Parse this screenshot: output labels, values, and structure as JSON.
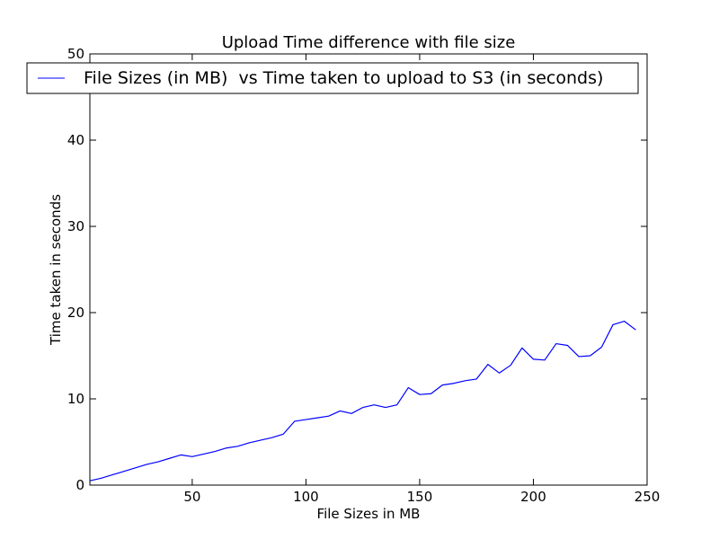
{
  "chart_data": {
    "type": "line",
    "title": "Upload Time difference with file size",
    "xlabel": "File Sizes in MB",
    "ylabel": "Time taken in seconds",
    "xlim": [
      5,
      250
    ],
    "ylim": [
      0,
      50
    ],
    "xticks": [
      50,
      100,
      150,
      200,
      250
    ],
    "yticks": [
      0,
      10,
      20,
      30,
      40,
      50
    ],
    "grid": false,
    "legend_position": "top",
    "series": [
      {
        "name": "File Sizes (in MB)  vs Time taken to upload to S3 (in seconds)",
        "color": "#0000ff",
        "x": [
          5,
          10,
          15,
          20,
          25,
          30,
          35,
          40,
          45,
          50,
          55,
          60,
          65,
          70,
          75,
          80,
          85,
          90,
          95,
          100,
          105,
          110,
          115,
          120,
          125,
          130,
          135,
          140,
          145,
          150,
          155,
          160,
          165,
          170,
          175,
          180,
          185,
          190,
          195,
          200,
          205,
          210,
          215,
          220,
          225,
          230,
          235,
          240,
          245
        ],
        "y": [
          0.5,
          0.8,
          1.2,
          1.6,
          2.0,
          2.4,
          2.7,
          3.1,
          3.5,
          3.3,
          3.6,
          3.9,
          4.3,
          4.5,
          4.9,
          5.2,
          5.5,
          5.9,
          7.4,
          7.6,
          7.8,
          8.0,
          8.6,
          8.3,
          9.0,
          9.3,
          9.0,
          9.3,
          11.3,
          10.5,
          10.6,
          11.6,
          11.8,
          12.1,
          12.3,
          14.0,
          13.0,
          13.9,
          15.9,
          14.6,
          14.5,
          16.4,
          16.2,
          14.9,
          15.0,
          16.0,
          18.6,
          19.0,
          18.0
        ]
      }
    ]
  }
}
